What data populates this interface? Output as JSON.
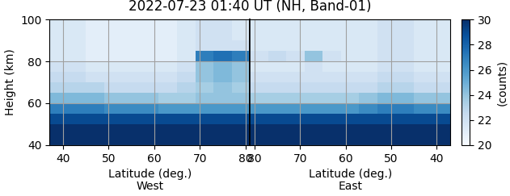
{
  "chart_data": {
    "type": "heatmap",
    "title": "2022-07-23 01:40 UT (NH, Band-01)",
    "ylabel": "Height (km)",
    "ylim": [
      40,
      100
    ],
    "yticks": [
      40,
      60,
      80,
      100
    ],
    "grid": true,
    "height_edges": [
      40,
      45,
      50,
      55,
      60,
      65,
      70,
      75,
      80,
      85,
      90,
      95,
      100
    ],
    "lat_edges": [
      37,
      41,
      45,
      49,
      53,
      57,
      61,
      65,
      69,
      73,
      77,
      81
    ],
    "colorbar": {
      "label": "(counts)",
      "range": [
        20,
        30
      ],
      "ticks": [
        20,
        22,
        24,
        26,
        28,
        30
      ]
    },
    "panels": [
      {
        "xlabel": "Latitude (deg.)\nWest",
        "xlim": [
          37,
          81
        ],
        "xticks": [
          40,
          50,
          60,
          70,
          80
        ],
        "cells": [
          [
            30,
            30,
            30,
            30,
            30,
            30,
            30,
            30,
            30,
            30,
            30
          ],
          [
            30,
            30,
            30,
            30,
            30,
            30,
            30,
            30,
            30,
            30,
            30
          ],
          [
            29,
            29,
            29,
            29,
            29,
            29,
            29,
            29,
            29,
            29,
            29
          ],
          [
            27,
            27,
            27,
            26.5,
            26.5,
            26.5,
            26,
            26,
            26,
            26,
            26
          ],
          [
            24.5,
            24.5,
            24.5,
            24,
            24,
            24,
            23.5,
            23.5,
            24,
            24,
            24
          ],
          [
            23,
            23,
            23,
            22.5,
            22.5,
            22.5,
            22.5,
            23,
            23.5,
            24,
            23.5
          ],
          [
            22.5,
            22.5,
            22,
            22,
            22,
            22,
            22,
            22.5,
            24,
            24.5,
            24
          ],
          [
            22,
            22,
            21.5,
            21.5,
            21.5,
            21.5,
            21.5,
            22,
            24,
            24.5,
            24
          ],
          [
            21.5,
            21.5,
            21,
            21,
            21,
            21,
            21,
            21.5,
            27,
            27.5,
            27
          ],
          [
            21.5,
            21.5,
            21,
            21,
            21,
            21,
            21,
            21.5,
            22,
            22,
            22
          ],
          [
            21.5,
            21.5,
            21,
            21,
            21,
            21,
            21,
            21.5,
            22,
            22,
            21.5
          ],
          [
            21.5,
            21.5,
            21,
            21,
            21,
            21,
            21,
            21.5,
            22,
            22,
            21.5
          ]
        ]
      },
      {
        "xlabel": "Latitude (deg.)\nEast",
        "xlim": [
          81,
          37
        ],
        "xticks": [
          80,
          70,
          60,
          50,
          40
        ],
        "cells": [
          [
            30,
            30,
            30,
            30,
            30,
            30,
            30,
            30,
            30,
            30,
            30
          ],
          [
            30,
            30,
            30,
            30,
            30,
            30,
            30,
            30,
            30,
            30,
            30
          ],
          [
            29,
            29,
            29,
            29,
            29,
            29,
            29,
            29,
            29,
            29,
            29
          ],
          [
            26.5,
            26.5,
            27,
            27,
            26.5,
            26,
            26,
            26,
            26,
            26,
            26
          ],
          [
            24,
            24,
            24.5,
            24.5,
            24,
            23.5,
            23.5,
            23.5,
            23.5,
            23.5,
            23.5
          ],
          [
            22.5,
            22.5,
            23,
            23,
            22.5,
            22.5,
            22.5,
            22.5,
            22.5,
            22.5,
            22.5
          ],
          [
            22,
            22,
            22.5,
            22.5,
            22,
            22,
            22,
            22,
            22,
            22,
            22
          ],
          [
            21.5,
            21.5,
            22,
            22,
            21.5,
            21.5,
            21.5,
            22,
            21.5,
            21.5,
            21.5
          ],
          [
            21.5,
            21.5,
            22,
            22,
            21.5,
            21.5,
            22,
            24,
            22,
            22.5,
            22
          ],
          [
            21.5,
            21.5,
            22,
            22,
            21.5,
            21.5,
            21.5,
            21.5,
            21.5,
            21.5,
            21.5
          ],
          [
            21.5,
            21.5,
            22,
            22,
            21.5,
            21.5,
            21.5,
            21.5,
            21.5,
            21.5,
            21.5
          ],
          [
            21.5,
            21.5,
            22,
            22,
            21.5,
            21.5,
            21.5,
            21.5,
            21.5,
            21.5,
            21.5
          ]
        ]
      }
    ]
  }
}
